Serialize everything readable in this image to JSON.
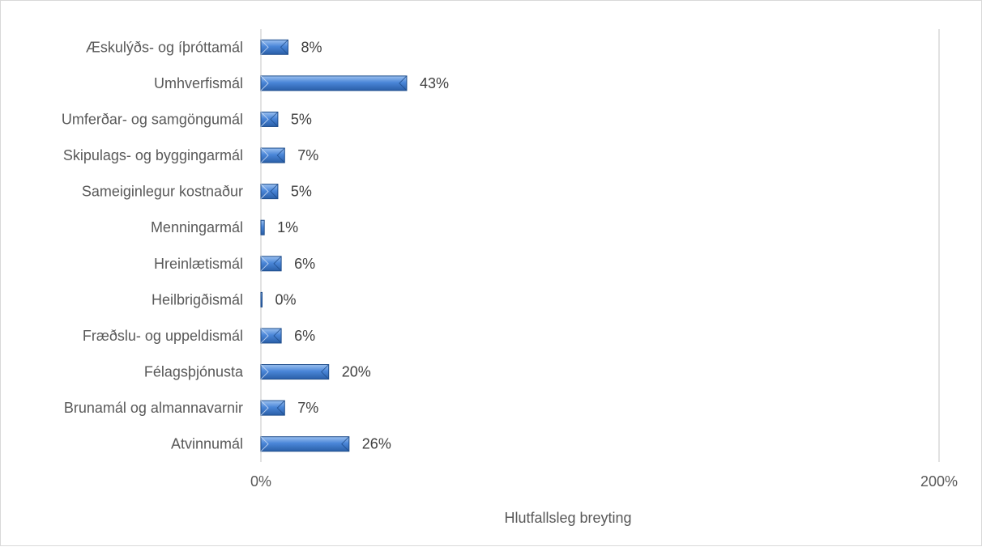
{
  "chart_data": {
    "type": "bar",
    "orientation": "horizontal",
    "categories": [
      "Æskulýðs- og íþróttamál",
      "Umhverfismál",
      "Umferðar- og samgöngumál",
      "Skipulags- og byggingarmál",
      "Sameiginlegur kostnaður",
      "Menningarmál",
      "Hreinlætismál",
      "Heilbrigðismál",
      "Fræðslu- og uppeldismál",
      "Félagsþjónusta",
      "Brunamál og almannavarnir",
      "Atvinnumál"
    ],
    "values": [
      8,
      43,
      5,
      7,
      5,
      1,
      6,
      0,
      6,
      20,
      7,
      26
    ],
    "data_labels": [
      "8%",
      "43%",
      "5%",
      "7%",
      "5%",
      "1%",
      "6%",
      "0%",
      "6%",
      "20%",
      "7%",
      "26%"
    ],
    "xlim": [
      0,
      200
    ],
    "x_ticks": [
      "0%",
      "200%"
    ],
    "xlabel": "Hlutfallsleg breyting",
    "ylabel": "",
    "title": "",
    "grid": "vertical",
    "bar_color": "#4a86d8",
    "bar_edge_color": "#1f4e8c"
  }
}
